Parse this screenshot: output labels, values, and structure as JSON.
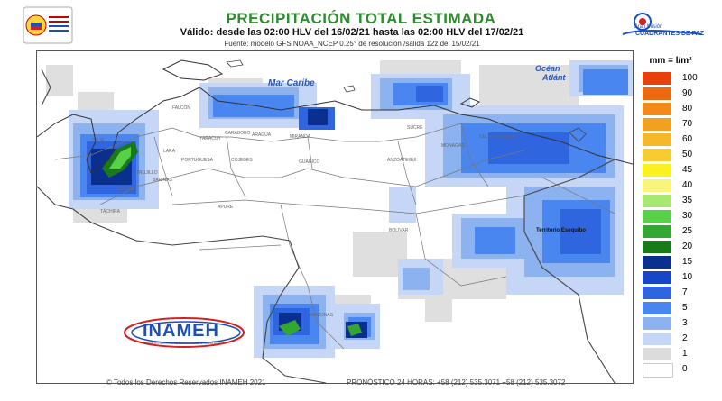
{
  "header": {
    "title": "PRECIPITACIÓN TOTAL ESTIMADA",
    "valid": "Válido: desde las 02:00 HLV del 16/02/21 hasta las 02:00 HLV del 17/02/21",
    "source": "Fuente: modelo GFS NOAA_NCEP 0.25° de resolución /salida 12z del 15/02/21"
  },
  "logos": {
    "right_top": "Gran Misión",
    "right_main": "CUADRANTES DE PAZ",
    "inameh": "INAMEH",
    "inameh_sub": "INSTITUTO NACIONAL DE METEOROLOGÍA E HIDROLOGÍA"
  },
  "map": {
    "sea_label": "Mar Caribe",
    "ocean_label_1": "Océan",
    "ocean_label_2": "Atlánt",
    "territory_label": "Territorio Esequibo",
    "region_labels": [
      "ZULIA",
      "FALCÓN",
      "LARA",
      "YARACUY",
      "CARABOBO",
      "ARAGUA",
      "MIRANDA",
      "PORTUGUESA",
      "COJEDES",
      "GUÁRICO",
      "ANZOÁTEGUI",
      "SUCRE",
      "MONAGAS",
      "DELTA AMACURO",
      "BARINAS",
      "APURE",
      "BOLÍVAR",
      "AMAZONAS",
      "MÉRIDA",
      "TÁCHIRA",
      "TRUJILLO"
    ]
  },
  "legend": {
    "unit": "mm = l/m²",
    "items": [
      {
        "label": "100",
        "color": "#e8400a"
      },
      {
        "label": "90",
        "color": "#ee6a10"
      },
      {
        "label": "80",
        "color": "#f08a18"
      },
      {
        "label": "70",
        "color": "#f2a020"
      },
      {
        "label": "60",
        "color": "#f5b82a"
      },
      {
        "label": "50",
        "color": "#f8cc30"
      },
      {
        "label": "45",
        "color": "#fbf020"
      },
      {
        "label": "40",
        "color": "#f8f57a"
      },
      {
        "label": "35",
        "color": "#a8e870"
      },
      {
        "label": "30",
        "color": "#58d048"
      },
      {
        "label": "25",
        "color": "#32a832"
      },
      {
        "label": "20",
        "color": "#1a7a1a"
      },
      {
        "label": "15",
        "color": "#0a2f8f"
      },
      {
        "label": "10",
        "color": "#1746c8"
      },
      {
        "label": "7",
        "color": "#2f66e0"
      },
      {
        "label": "5",
        "color": "#4a86ef"
      },
      {
        "label": "3",
        "color": "#8cb2f0"
      },
      {
        "label": "2",
        "color": "#c5d6f6"
      },
      {
        "label": "1",
        "color": "#dcdcdc"
      },
      {
        "label": "0",
        "color": "#ffffff"
      }
    ]
  },
  "footer": {
    "copyright": "© Todos los Derechos Reservados INAMEH 2021",
    "forecast": "PRONÓSTICO 24 HORAS: +58 (212) 535.3071 +58 (212) 535.3072"
  }
}
